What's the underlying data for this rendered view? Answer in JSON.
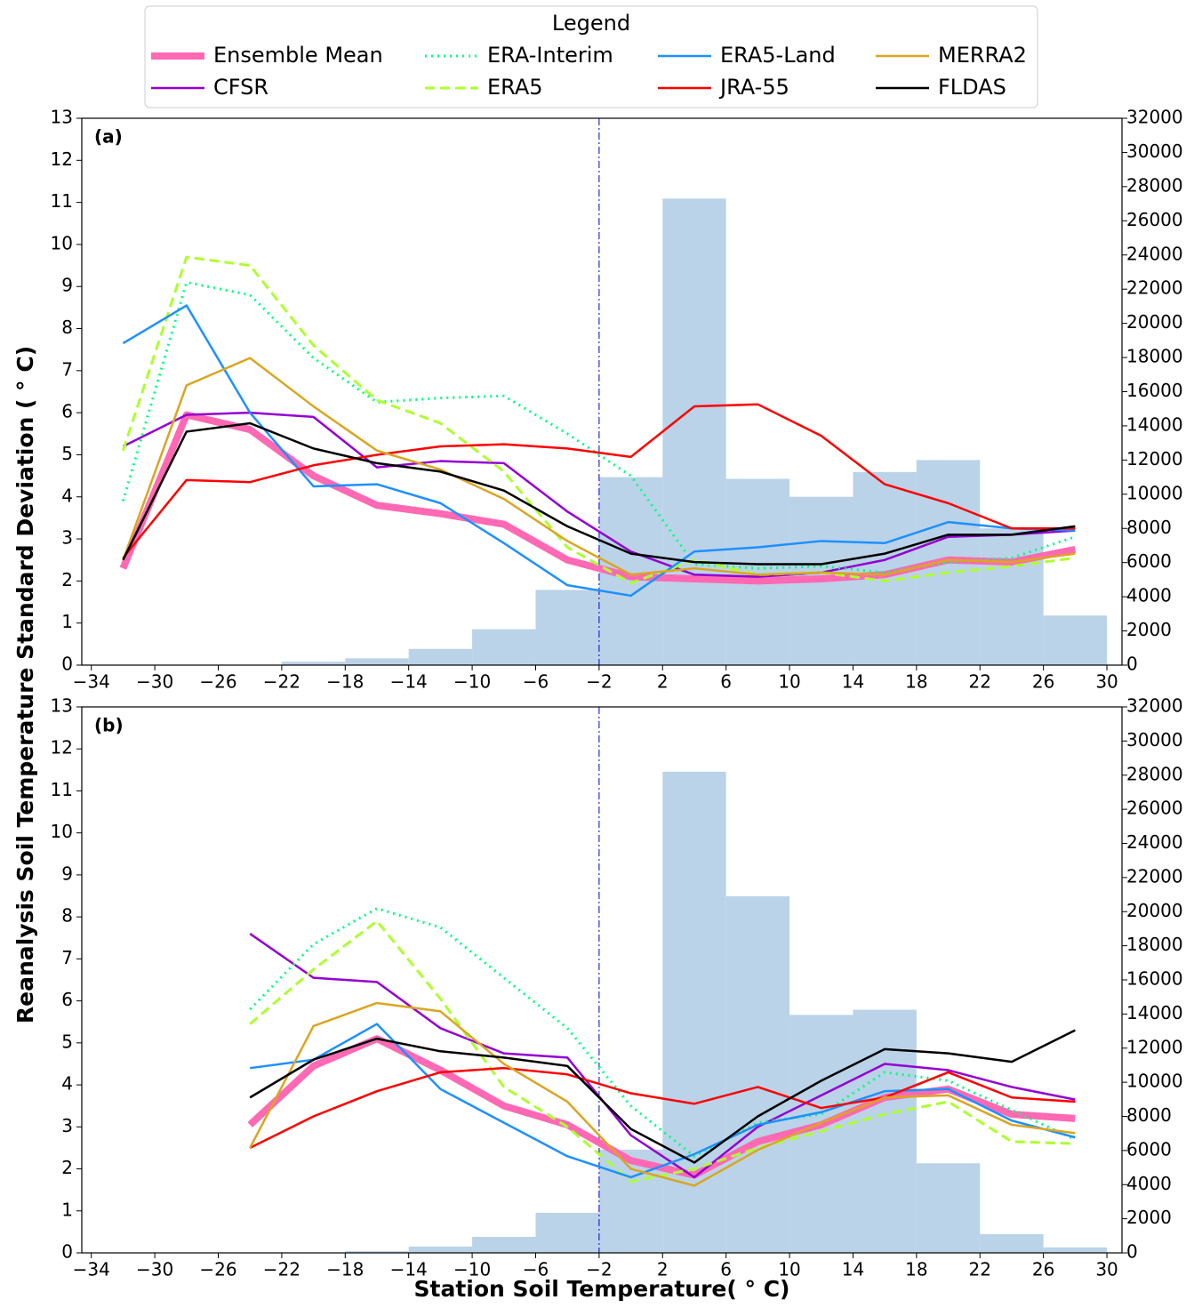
{
  "chart_data": [
    {
      "type": "line",
      "panel_label": "(a)",
      "ylabel": "Reanalysis Soil Temperature Standard Deviation ( ° C)",
      "legend_title": "Legend",
      "x": [
        -32,
        -28,
        -24,
        -20,
        -16,
        -12,
        -8,
        -4,
        0,
        4,
        8,
        12,
        16,
        20,
        24,
        28
      ],
      "series": [
        {
          "name": "Ensemble Mean",
          "color": "#ff69b4",
          "width": 8,
          "dash": "solid",
          "values": [
            2.3,
            5.95,
            5.6,
            4.5,
            3.8,
            3.6,
            3.35,
            2.5,
            2.1,
            2.05,
            2.0,
            2.05,
            2.15,
            2.5,
            2.45,
            2.75
          ]
        },
        {
          "name": "CFSR",
          "color": "#9400d3",
          "width": 2.5,
          "dash": "solid",
          "values": [
            5.2,
            5.95,
            6.0,
            5.9,
            4.7,
            4.85,
            4.8,
            3.65,
            2.7,
            2.15,
            2.1,
            2.2,
            2.5,
            3.05,
            3.1,
            3.2
          ]
        },
        {
          "name": "ERA-Interim",
          "color": "#00ff7f",
          "width": 3,
          "dash": "dotted",
          "values": [
            3.9,
            9.1,
            8.8,
            7.3,
            6.25,
            6.35,
            6.4,
            5.5,
            4.5,
            2.4,
            2.3,
            2.35,
            2.2,
            2.45,
            2.55,
            3.05
          ]
        },
        {
          "name": "ERA5",
          "color": "#adff2f",
          "width": 3,
          "dash": "dashed",
          "values": [
            5.1,
            9.7,
            9.5,
            7.6,
            6.3,
            5.75,
            4.6,
            2.8,
            1.95,
            2.5,
            2.15,
            2.2,
            2.0,
            2.2,
            2.35,
            2.55
          ]
        },
        {
          "name": "ERA5-Land",
          "color": "#1e90ff",
          "width": 2.5,
          "dash": "solid",
          "values": [
            7.65,
            8.55,
            6.0,
            4.25,
            4.3,
            3.85,
            2.9,
            1.9,
            1.65,
            2.7,
            2.8,
            2.95,
            2.9,
            3.4,
            3.25,
            3.2
          ]
        },
        {
          "name": "JRA-55",
          "color": "#ff0000",
          "width": 2.5,
          "dash": "solid",
          "values": [
            2.55,
            4.4,
            4.35,
            4.75,
            5.0,
            5.2,
            5.25,
            5.15,
            4.95,
            6.15,
            6.2,
            5.45,
            4.3,
            3.85,
            3.25,
            3.25
          ]
        },
        {
          "name": "MERRA2",
          "color": "#daa520",
          "width": 2.5,
          "dash": "solid",
          "values": [
            2.5,
            6.65,
            7.3,
            6.15,
            5.1,
            4.65,
            3.95,
            2.95,
            2.15,
            2.3,
            2.15,
            2.2,
            2.15,
            2.5,
            2.45,
            2.65
          ]
        },
        {
          "name": "FLDAS",
          "color": "#000000",
          "width": 2.5,
          "dash": "solid",
          "values": [
            2.5,
            5.55,
            5.75,
            5.15,
            4.8,
            4.6,
            4.15,
            3.3,
            2.65,
            2.45,
            2.4,
            2.4,
            2.65,
            3.1,
            3.1,
            3.3
          ]
        }
      ],
      "histogram": {
        "color": "#bad3e8",
        "axis": "y2",
        "bins": [
          -22,
          -18,
          -14,
          -10,
          -6,
          -2,
          2,
          6,
          10,
          14,
          18,
          22,
          26,
          30
        ],
        "counts": [
          200,
          400,
          950,
          2100,
          4400,
          11000,
          27300,
          10900,
          9850,
          11300,
          12000,
          8000,
          2900
        ]
      },
      "vline": -2,
      "vline_color": "#0000cd",
      "xlim": [
        -34.6,
        30.95
      ],
      "ylim": [
        0,
        13
      ],
      "y2lim": [
        0,
        32000
      ],
      "xticks": [
        {
          "value": -34,
          "label": "−34"
        },
        {
          "value": -30,
          "label": "−30"
        },
        {
          "value": -26,
          "label": "−26"
        },
        {
          "value": -22,
          "label": "−22"
        },
        {
          "value": -18,
          "label": "−18"
        },
        {
          "value": -14,
          "label": "−14"
        },
        {
          "value": -10,
          "label": "−10"
        },
        {
          "value": -6,
          "label": "−6"
        },
        {
          "value": -2,
          "label": "−2"
        },
        2,
        6,
        10,
        14,
        18,
        22,
        26,
        30
      ],
      "yticks": [
        0,
        1,
        2,
        3,
        4,
        5,
        6,
        7,
        8,
        9,
        10,
        11,
        12,
        13
      ],
      "y2ticks": [
        0,
        2000,
        4000,
        6000,
        8000,
        10000,
        12000,
        14000,
        16000,
        18000,
        20000,
        22000,
        24000,
        26000,
        28000,
        30000,
        32000
      ]
    },
    {
      "type": "line",
      "panel_label": "(b)",
      "xlabel": "Station Soil Temperature( ° C)",
      "x": [
        -24,
        -20,
        -16,
        -12,
        -8,
        -4,
        0,
        4,
        8,
        12,
        16,
        20,
        24,
        28
      ],
      "series": [
        {
          "color": "#ff69b4",
          "width": 8,
          "dash": "solid",
          "values": [
            3.05,
            4.45,
            5.1,
            4.35,
            3.5,
            3.05,
            2.2,
            1.85,
            2.65,
            3.05,
            3.7,
            3.9,
            3.3,
            3.2
          ]
        },
        {
          "color": "#9400d3",
          "width": 2.5,
          "dash": "solid",
          "values": [
            7.6,
            6.55,
            6.45,
            5.35,
            4.75,
            4.65,
            2.8,
            1.8,
            3.0,
            3.75,
            4.5,
            4.35,
            3.95,
            3.65
          ]
        },
        {
          "color": "#00ff7f",
          "width": 3,
          "dash": "dotted",
          "values": [
            5.8,
            7.35,
            8.2,
            7.75,
            6.55,
            5.35,
            3.5,
            2.3,
            3.1,
            3.3,
            4.3,
            4.1,
            3.4,
            2.7
          ]
        },
        {
          "color": "#adff2f",
          "width": 3,
          "dash": "dashed",
          "values": [
            5.45,
            6.75,
            7.9,
            6.05,
            3.95,
            3.0,
            1.7,
            2.0,
            2.5,
            2.9,
            3.3,
            3.6,
            2.65,
            2.6
          ]
        },
        {
          "color": "#1e90ff",
          "width": 2.5,
          "dash": "solid",
          "values": [
            4.4,
            4.6,
            5.45,
            3.9,
            3.1,
            2.3,
            1.8,
            2.35,
            3.05,
            3.35,
            3.85,
            3.9,
            3.15,
            2.75
          ]
        },
        {
          "color": "#ff0000",
          "width": 2.5,
          "dash": "solid",
          "values": [
            2.5,
            3.25,
            3.85,
            4.3,
            4.4,
            4.25,
            3.8,
            3.55,
            3.95,
            3.45,
            3.7,
            4.3,
            3.7,
            3.6
          ]
        },
        {
          "color": "#daa520",
          "width": 2.5,
          "dash": "solid",
          "values": [
            2.5,
            5.4,
            5.95,
            5.75,
            4.5,
            3.6,
            2.0,
            1.6,
            2.45,
            3.1,
            3.7,
            3.75,
            3.05,
            2.85
          ]
        },
        {
          "color": "#000000",
          "width": 2.5,
          "dash": "solid",
          "values": [
            3.7,
            4.6,
            5.1,
            4.8,
            4.65,
            4.45,
            2.95,
            2.15,
            3.25,
            4.1,
            4.85,
            4.75,
            4.55,
            5.3
          ]
        }
      ],
      "histogram": {
        "color": "#bad3e8",
        "axis": "y2",
        "bins": [
          -18,
          -14,
          -10,
          -6,
          -2,
          2,
          6,
          10,
          14,
          18,
          22,
          26,
          30
        ],
        "counts": [
          100,
          370,
          940,
          2350,
          6050,
          28200,
          20900,
          13950,
          14250,
          5250,
          1100,
          320
        ]
      },
      "vline": -2,
      "vline_color": "#0000cd",
      "xlim": [
        -34.6,
        30.95
      ],
      "ylim": [
        0,
        13
      ],
      "y2lim": [
        0,
        32000
      ],
      "xticks": [
        {
          "value": -34,
          "label": "−34"
        },
        {
          "value": -30,
          "label": "−30"
        },
        {
          "value": -26,
          "label": "−26"
        },
        {
          "value": -22,
          "label": "−22"
        },
        {
          "value": -18,
          "label": "−18"
        },
        {
          "value": -14,
          "label": "−14"
        },
        {
          "value": -10,
          "label": "−10"
        },
        {
          "value": -6,
          "label": "−6"
        },
        {
          "value": -2,
          "label": "−2"
        },
        2,
        6,
        10,
        14,
        18,
        22,
        26,
        30
      ],
      "yticks": [
        0,
        1,
        2,
        3,
        4,
        5,
        6,
        7,
        8,
        9,
        10,
        11,
        12,
        13
      ],
      "y2ticks": [
        0,
        2000,
        4000,
        6000,
        8000,
        10000,
        12000,
        14000,
        16000,
        18000,
        20000,
        22000,
        24000,
        26000,
        28000,
        30000,
        32000
      ]
    }
  ]
}
